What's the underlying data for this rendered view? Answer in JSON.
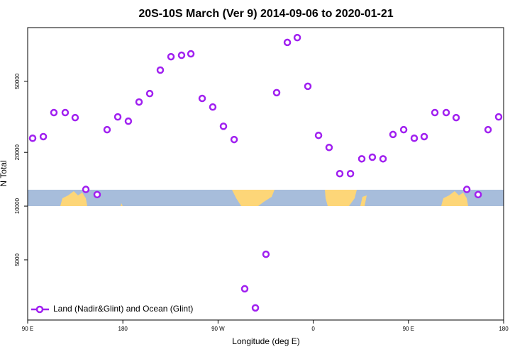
{
  "chart_data": {
    "type": "scatter",
    "title": "20S-10S March (Ver 9)   2014-09-06 to 2020-01-21",
    "x_label": "Longitude (deg E)",
    "y_label": "N Total",
    "xlim": [
      90,
      540
    ],
    "xticks": [
      {
        "value": 90,
        "label": "90 E"
      },
      {
        "value": 180,
        "label": "180"
      },
      {
        "value": 270,
        "label": "90 W"
      },
      {
        "value": 360,
        "label": "0"
      },
      {
        "value": 450,
        "label": "90 E"
      },
      {
        "value": 540,
        "label": "180"
      }
    ],
    "ylim": [
      2300,
      100000
    ],
    "yticks": [
      5000,
      10000,
      20000,
      50000
    ],
    "log_y": true,
    "legend": "bottom-left",
    "series": [
      {
        "name": "Land (Nadir&Glint) and Ocean (Glint)",
        "color": "#a020f0",
        "x": [
          94.7,
          104.8,
          114.8,
          125.5,
          134.9,
          145,
          155.7,
          165.1,
          175.2,
          185.2,
          195.3,
          205.4,
          215.4,
          225.5,
          235.5,
          244.3,
          255,
          265,
          275.1,
          285.2,
          295.2,
          305.3,
          315.3,
          325.4,
          335.5,
          344.9,
          354.9,
          365,
          375,
          385.1,
          395.2,
          405.9,
          415.9,
          426,
          435.4,
          445.5,
          455.5,
          464.9,
          475,
          485.7,
          495.1,
          505.2,
          515.9,
          525.3,
          535.3
        ],
        "values": [
          24000,
          24500,
          33400,
          33400,
          31300,
          12400,
          11600,
          26800,
          31600,
          29900,
          38300,
          42700,
          57800,
          68700,
          70000,
          71300,
          40100,
          35900,
          28000,
          23600,
          3440,
          2690,
          5370,
          43200,
          82600,
          87900,
          46900,
          24900,
          21300,
          15200,
          15200,
          18400,
          18800,
          18400,
          25200,
          26800,
          24000,
          24500,
          33400,
          33400,
          31300,
          12400,
          11600,
          26800,
          31600
        ]
      }
    ]
  }
}
